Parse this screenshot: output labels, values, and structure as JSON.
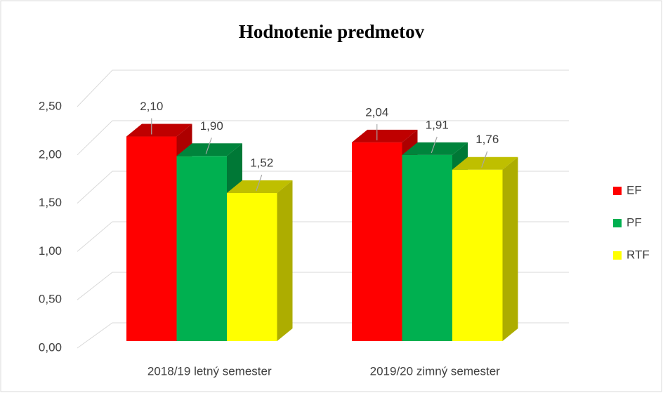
{
  "chart_data": {
    "type": "bar3d",
    "title": "Hodnotenie predmetov",
    "categories": [
      "2018/19 letný semester",
      "2019/20 zimný semester"
    ],
    "series": [
      {
        "name": "EF",
        "color": "#ff0000",
        "values": [
          2.1,
          2.04
        ],
        "value_labels": [
          "2,10",
          "2,04"
        ]
      },
      {
        "name": "PF",
        "color": "#00b050",
        "values": [
          1.9,
          1.91
        ],
        "value_labels": [
          "1,90",
          "1,91"
        ]
      },
      {
        "name": "RTF",
        "color": "#ffff00",
        "values": [
          1.52,
          1.76
        ],
        "value_labels": [
          "1,52",
          "1,76"
        ]
      }
    ],
    "ylim": [
      0,
      2.5
    ],
    "yticks": [
      {
        "value": 0,
        "label": "0,00"
      },
      {
        "value": 0.5,
        "label": "0,50"
      },
      {
        "value": 1,
        "label": "1,00"
      },
      {
        "value": 1.5,
        "label": "1,50"
      },
      {
        "value": 2,
        "label": "2,00"
      },
      {
        "value": 2.5,
        "label": "2,50"
      }
    ],
    "grid": true,
    "legend": "right"
  }
}
